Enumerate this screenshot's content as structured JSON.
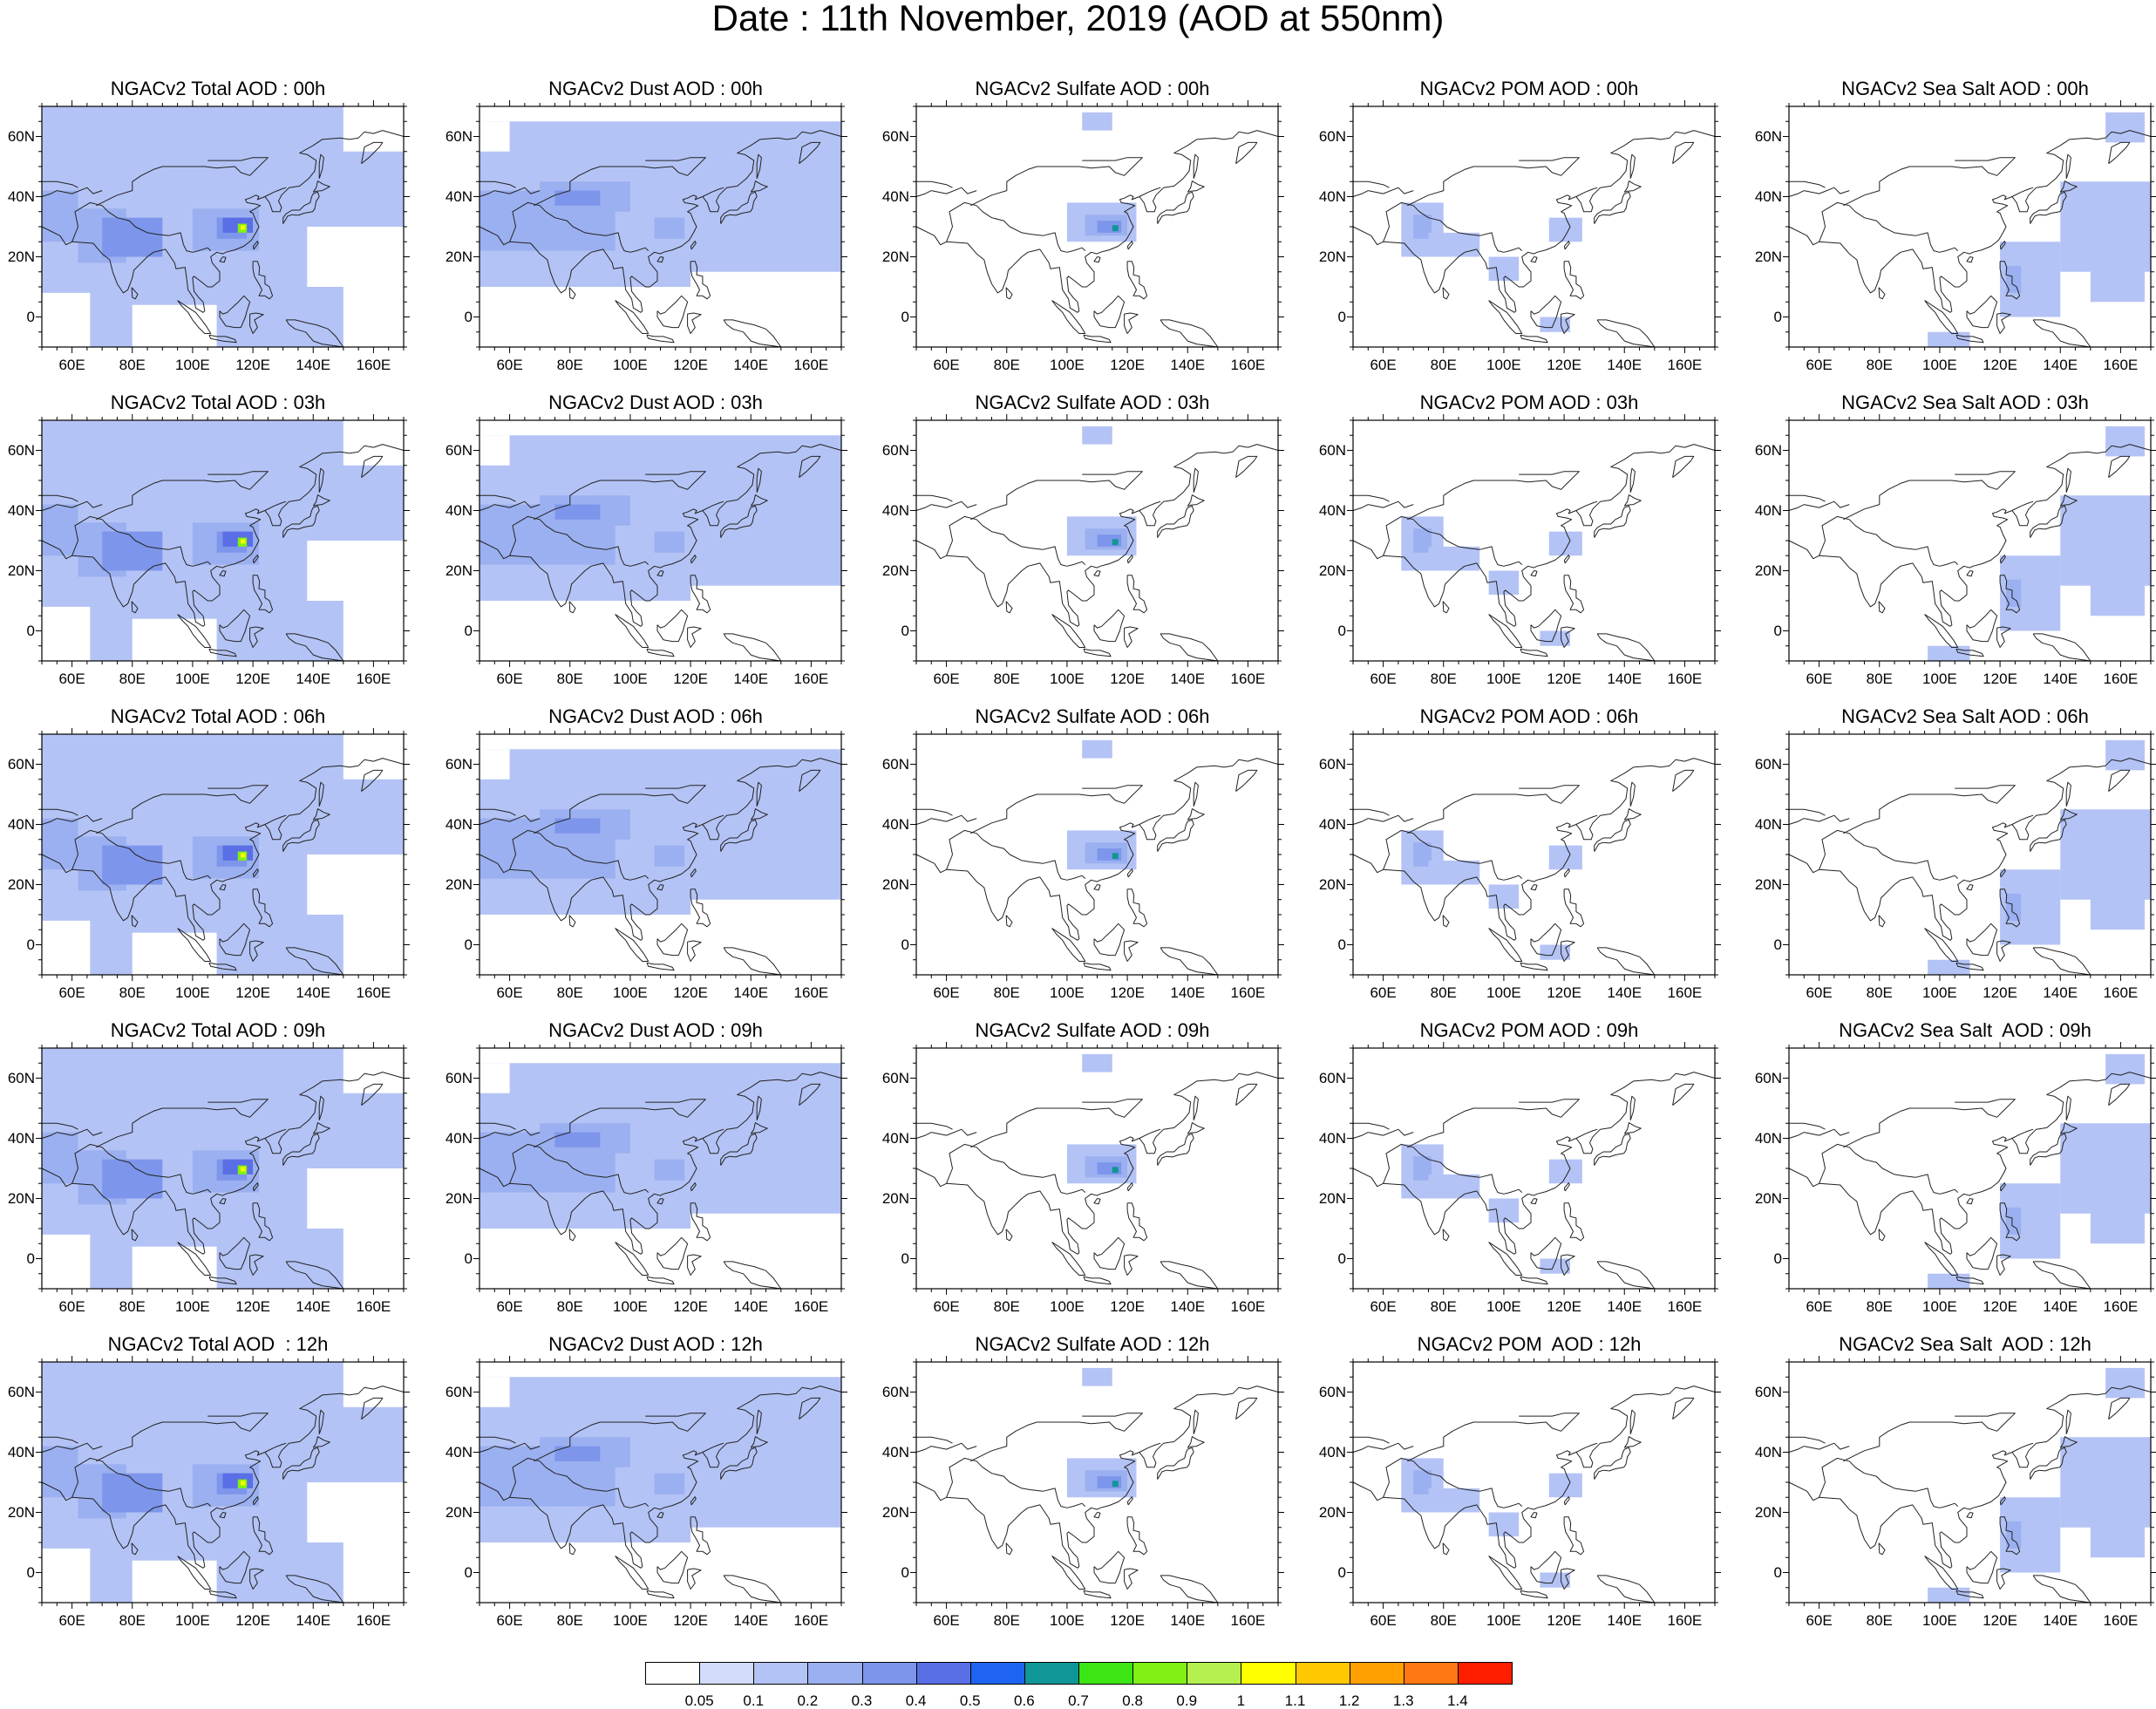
{
  "title": "Date : 11th November, 2019 (AOD at 550nm)",
  "axes": {
    "lon_ticks": [
      "60E",
      "80E",
      "100E",
      "120E",
      "140E",
      "160E"
    ],
    "lat_ticks": [
      "60N",
      "40N",
      "20N",
      "0"
    ],
    "lon_range": [
      50,
      170
    ],
    "lat_range": [
      -10,
      70
    ]
  },
  "panels": [
    [
      {
        "title": "NGACv2 Total AOD : 00h",
        "species": "total",
        "hour": "00h"
      },
      {
        "title": "NGACv2 Dust AOD : 00h",
        "species": "dust",
        "hour": "00h"
      },
      {
        "title": "NGACv2 Sulfate AOD : 00h",
        "species": "sulfate",
        "hour": "00h"
      },
      {
        "title": "NGACv2 POM AOD : 00h",
        "species": "pom",
        "hour": "00h"
      },
      {
        "title": "NGACv2 Sea Salt AOD : 00h",
        "species": "seasalt",
        "hour": "00h"
      }
    ],
    [
      {
        "title": "NGACv2 Total AOD : 03h",
        "species": "total",
        "hour": "03h"
      },
      {
        "title": "NGACv2 Dust AOD : 03h",
        "species": "dust",
        "hour": "03h"
      },
      {
        "title": "NGACv2 Sulfate AOD : 03h",
        "species": "sulfate",
        "hour": "03h"
      },
      {
        "title": "NGACv2 POM AOD : 03h",
        "species": "pom",
        "hour": "03h"
      },
      {
        "title": "NGACv2 Sea Salt AOD : 03h",
        "species": "seasalt",
        "hour": "03h"
      }
    ],
    [
      {
        "title": "NGACv2 Total AOD : 06h",
        "species": "total",
        "hour": "06h"
      },
      {
        "title": "NGACv2 Dust AOD : 06h",
        "species": "dust",
        "hour": "06h"
      },
      {
        "title": "NGACv2 Sulfate AOD : 06h",
        "species": "sulfate",
        "hour": "06h"
      },
      {
        "title": "NGACv2 POM AOD : 06h",
        "species": "pom",
        "hour": "06h"
      },
      {
        "title": "NGACv2 Sea Salt AOD : 06h",
        "species": "seasalt",
        "hour": "06h"
      }
    ],
    [
      {
        "title": "NGACv2 Total AOD : 09h",
        "species": "total",
        "hour": "09h"
      },
      {
        "title": "NGACv2 Dust AOD : 09h",
        "species": "dust",
        "hour": "09h"
      },
      {
        "title": "NGACv2 Sulfate AOD : 09h",
        "species": "sulfate",
        "hour": "09h"
      },
      {
        "title": "NGACv2 POM AOD : 09h",
        "species": "pom",
        "hour": "09h"
      },
      {
        "title": "NGACv2 Sea Salt  AOD : 09h",
        "species": "seasalt",
        "hour": "09h"
      }
    ],
    [
      {
        "title": "NGACv2 Total AOD  : 12h",
        "species": "total",
        "hour": "12h"
      },
      {
        "title": "NGACv2 Dust AOD : 12h",
        "species": "dust",
        "hour": "12h"
      },
      {
        "title": "NGACv2 Sulfate AOD : 12h",
        "species": "sulfate",
        "hour": "12h"
      },
      {
        "title": "NGACv2 POM  AOD : 12h",
        "species": "pom",
        "hour": "12h"
      },
      {
        "title": "NGACv2 Sea Salt  AOD : 12h",
        "species": "seasalt",
        "hour": "12h"
      }
    ]
  ],
  "colorbar": {
    "labels": [
      "0.05",
      "0.1",
      "0.2",
      "0.3",
      "0.4",
      "0.5",
      "0.6",
      "0.7",
      "0.8",
      "0.9",
      "1",
      "1.1",
      "1.2",
      "1.3",
      "1.4"
    ],
    "colors": [
      "#ffffff",
      "#d2dcfa",
      "#b4c3f5",
      "#9bb0f0",
      "#7d96eb",
      "#5a6ee6",
      "#1e64f0",
      "#0f9696",
      "#3ce614",
      "#82f014",
      "#b4f050",
      "#ffff00",
      "#ffc800",
      "#ffa000",
      "#ff7814",
      "#ff1e00"
    ]
  },
  "chart_data": {
    "type": "heatmap",
    "title": "Date : 11th November, 2019 (AOD at 550nm)",
    "xlabel": "",
    "ylabel": "",
    "xlim": [
      50,
      170
    ],
    "ylim": [
      -10,
      70
    ],
    "levels": [
      0.05,
      0.1,
      0.2,
      0.3,
      0.4,
      0.5,
      0.6,
      0.7,
      0.8,
      0.9,
      1,
      1.1,
      1.2,
      1.3,
      1.4
    ],
    "fields": {
      "total": {
        "background": {
          "value": 0.1,
          "lon": [
            50,
            170
          ],
          "lat": [
            -10,
            70
          ]
        },
        "blobs": [
          {
            "lon": [
              50,
              62
            ],
            "lat": [
              25,
              42
            ],
            "value": 0.2
          },
          {
            "lon": [
              62,
              78
            ],
            "lat": [
              18,
              36
            ],
            "value": 0.2
          },
          {
            "lon": [
              70,
              90
            ],
            "lat": [
              20,
              33
            ],
            "value": 0.3
          },
          {
            "lon": [
              100,
              122
            ],
            "lat": [
              22,
              36
            ],
            "value": 0.2
          },
          {
            "lon": [
              108,
              118
            ],
            "lat": [
              26,
              33
            ],
            "value": 0.3
          },
          {
            "lon": [
              110,
              120
            ],
            "lat": [
              28,
              33
            ],
            "value": 0.4
          },
          {
            "lon": [
              115,
              118
            ],
            "lat": [
              28,
              31
            ],
            "value": 0.8
          },
          {
            "lon": [
              116,
              117.5
            ],
            "lat": [
              29,
              30.5
            ],
            "value": 1
          }
        ],
        "clear": [
          {
            "lon": [
              50,
              66
            ],
            "lat": [
              -10,
              8
            ]
          },
          {
            "lon": [
              80,
              108
            ],
            "lat": [
              -10,
              4
            ]
          },
          {
            "lon": [
              138,
              170
            ],
            "lat": [
              10,
              30
            ]
          },
          {
            "lon": [
              150,
              170
            ],
            "lat": [
              -10,
              10
            ]
          },
          {
            "lon": [
              150,
              170
            ],
            "lat": [
              55,
              70
            ]
          }
        ]
      },
      "dust": {
        "background": {
          "value": 0.1,
          "lon": [
            50,
            170
          ],
          "lat": [
            10,
            65
          ]
        },
        "blobs": [
          {
            "lon": [
              50,
              95
            ],
            "lat": [
              22,
              42
            ],
            "value": 0.2
          },
          {
            "lon": [
              70,
              100
            ],
            "lat": [
              35,
              45
            ],
            "value": 0.2
          },
          {
            "lon": [
              75,
              90
            ],
            "lat": [
              37,
              42
            ],
            "value": 0.3
          },
          {
            "lon": [
              108,
              118
            ],
            "lat": [
              26,
              33
            ],
            "value": 0.2
          }
        ],
        "clear": [
          {
            "lon": [
              120,
              170
            ],
            "lat": [
              -10,
              15
            ]
          },
          {
            "lon": [
              50,
              60
            ],
            "lat": [
              55,
              65
            ]
          }
        ]
      },
      "sulfate": {
        "blobs": [
          {
            "lon": [
              100,
              123
            ],
            "lat": [
              25,
              38
            ],
            "value": 0.1
          },
          {
            "lon": [
              106,
              120
            ],
            "lat": [
              27,
              34
            ],
            "value": 0.2
          },
          {
            "lon": [
              110,
              118
            ],
            "lat": [
              28,
              32
            ],
            "value": 0.3
          },
          {
            "lon": [
              115,
              117
            ],
            "lat": [
              28.5,
              30.5
            ],
            "value": 0.6
          },
          {
            "lon": [
              105,
              115
            ],
            "lat": [
              62,
              68
            ],
            "value": 0.1
          }
        ]
      },
      "pom": {
        "blobs": [
          {
            "lon": [
              66,
              80
            ],
            "lat": [
              20,
              38
            ],
            "value": 0.1
          },
          {
            "lon": [
              70,
              76
            ],
            "lat": [
              26,
              34
            ],
            "value": 0.2
          },
          {
            "lon": [
              75,
              92
            ],
            "lat": [
              20,
              28
            ],
            "value": 0.1
          },
          {
            "lon": [
              115,
              126
            ],
            "lat": [
              25,
              33
            ],
            "value": 0.1
          },
          {
            "lon": [
              95,
              105
            ],
            "lat": [
              12,
              20
            ],
            "value": 0.1
          },
          {
            "lon": [
              112,
              122
            ],
            "lat": [
              -5,
              0
            ],
            "value": 0.1
          }
        ]
      },
      "seasalt": {
        "blobs": [
          {
            "lon": [
              120,
              140
            ],
            "lat": [
              0,
              25
            ],
            "value": 0.1
          },
          {
            "lon": [
              140,
              170
            ],
            "lat": [
              15,
              45
            ],
            "value": 0.1
          },
          {
            "lon": [
              122,
              127
            ],
            "lat": [
              8,
              17
            ],
            "value": 0.2
          },
          {
            "lon": [
              150,
              168
            ],
            "lat": [
              5,
              18
            ],
            "value": 0.1
          },
          {
            "lon": [
              155,
              168
            ],
            "lat": [
              58,
              68
            ],
            "value": 0.1
          },
          {
            "lon": [
              96,
              110
            ],
            "lat": [
              -10,
              -5
            ],
            "value": 0.1
          }
        ]
      }
    }
  }
}
